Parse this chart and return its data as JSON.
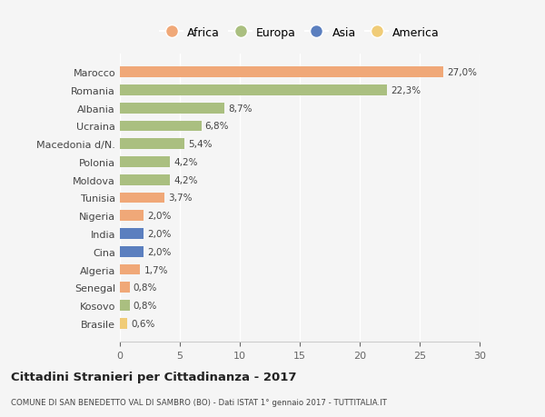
{
  "categories": [
    "Marocco",
    "Romania",
    "Albania",
    "Ucraina",
    "Macedonia d/N.",
    "Polonia",
    "Moldova",
    "Tunisia",
    "Nigeria",
    "India",
    "Cina",
    "Algeria",
    "Senegal",
    "Kosovo",
    "Brasile"
  ],
  "values": [
    27.0,
    22.3,
    8.7,
    6.8,
    5.4,
    4.2,
    4.2,
    3.7,
    2.0,
    2.0,
    2.0,
    1.7,
    0.8,
    0.8,
    0.6
  ],
  "labels": [
    "27,0%",
    "22,3%",
    "8,7%",
    "6,8%",
    "5,4%",
    "4,2%",
    "4,2%",
    "3,7%",
    "2,0%",
    "2,0%",
    "2,0%",
    "1,7%",
    "0,8%",
    "0,8%",
    "0,6%"
  ],
  "continents": [
    "Africa",
    "Europa",
    "Europa",
    "Europa",
    "Europa",
    "Europa",
    "Europa",
    "Africa",
    "Africa",
    "Asia",
    "Asia",
    "Africa",
    "Africa",
    "Europa",
    "America"
  ],
  "colors": {
    "Africa": "#F0A878",
    "Europa": "#AABF80",
    "Asia": "#5B7FBF",
    "America": "#F0CC78"
  },
  "background_color": "#f5f5f5",
  "title": "Cittadini Stranieri per Cittadinanza - 2017",
  "subtitle": "COMUNE DI SAN BENEDETTO VAL DI SAMBRO (BO) - Dati ISTAT 1° gennaio 2017 - TUTTITALIA.IT",
  "xlim": [
    0,
    30
  ],
  "xticks": [
    0,
    5,
    10,
    15,
    20,
    25,
    30
  ],
  "legend_entries": [
    "Africa",
    "Europa",
    "Asia",
    "America"
  ]
}
